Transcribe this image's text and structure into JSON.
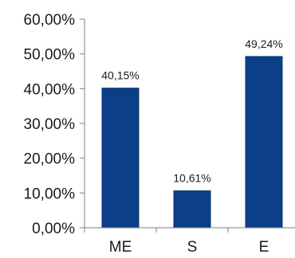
{
  "chart_data": {
    "type": "bar",
    "title": "",
    "xlabel": "",
    "ylabel": "",
    "categories": [
      "ME",
      "S",
      "E"
    ],
    "values": [
      40.15,
      10.61,
      49.24
    ],
    "data_labels": [
      "40,15%",
      "10,61%",
      "49,24%"
    ],
    "ylim": [
      0,
      60
    ],
    "yticks": [
      0,
      10,
      20,
      30,
      40,
      50,
      60
    ],
    "ytick_labels": [
      "0,00%",
      "10,00%",
      "20,00%",
      "30,00%",
      "40,00%",
      "50,00%",
      "60,00%"
    ],
    "grid": false,
    "legend": "none",
    "bar_color": "#0b3f87"
  }
}
